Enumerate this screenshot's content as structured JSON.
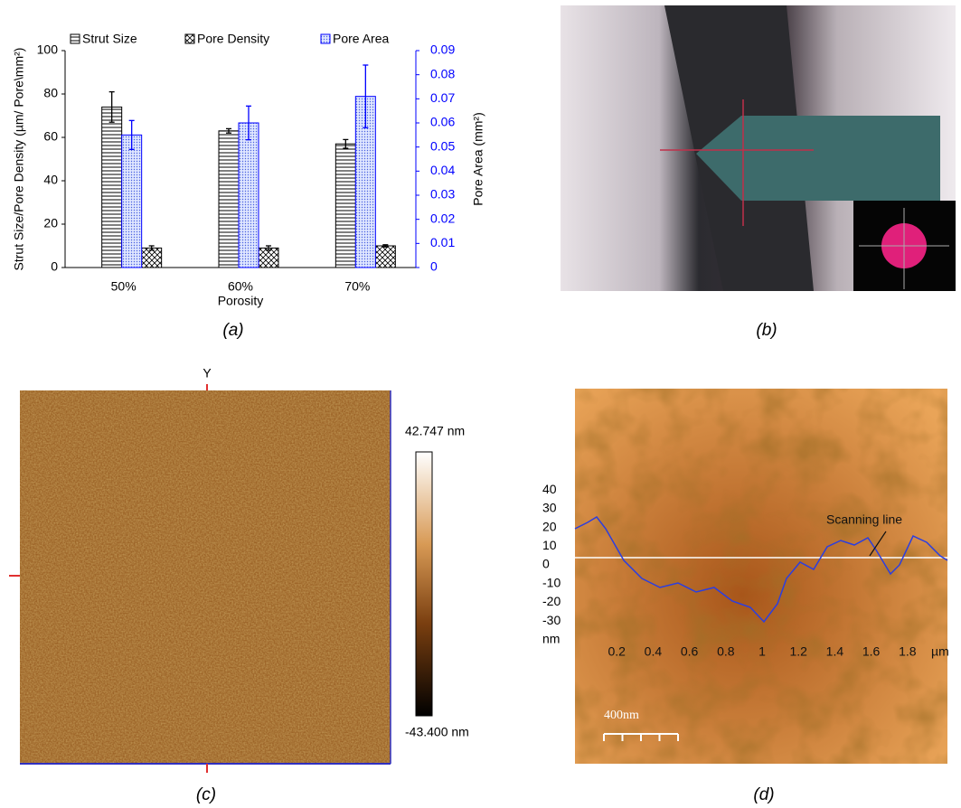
{
  "chart_data": {
    "type": "bar",
    "y_label": "Strut Size/Pore Density (µm/ Pore\\mm²)",
    "y2_label": "Pore Area (mm²)",
    "x_label": "Porosity",
    "categories": [
      "50%",
      "60%",
      "70%"
    ],
    "series": [
      {
        "name": "Strut Size",
        "color": "#000000",
        "values": [
          74,
          63,
          57
        ],
        "errors": [
          7,
          1,
          2
        ]
      },
      {
        "name": "Pore Density",
        "color": "#000000",
        "values": [
          9,
          9,
          10
        ],
        "errors": [
          1,
          1,
          0.5
        ]
      },
      {
        "name": "Pore Area",
        "color": "#0000ff",
        "axis": "y2",
        "values": [
          0.055,
          0.06,
          0.071
        ],
        "errors": [
          0.006,
          0.007,
          0.013
        ]
      }
    ],
    "ylim": [
      0,
      100
    ],
    "yticks": [
      0,
      20,
      40,
      60,
      80,
      100
    ],
    "y2lim": [
      0,
      0.09
    ],
    "y2ticks": [
      0,
      0.01,
      0.02,
      0.03,
      0.04,
      0.05,
      0.06,
      0.07,
      0.08,
      0.09
    ],
    "legend": "top"
  },
  "panel_labels": [
    "(a)",
    "(b)",
    "(c)",
    "(d)"
  ],
  "panel_c": {
    "axis_label": "Y",
    "scale_max": "42.747 nm",
    "scale_min": "-43.400 nm"
  },
  "panel_d": {
    "yticks": [
      40,
      30,
      20,
      10,
      0,
      -10,
      -20,
      -30
    ],
    "y_unit": "nm",
    "xticks": [
      0.2,
      0.4,
      0.6,
      0.8,
      1,
      1.2,
      1.4,
      1.6,
      1.8
    ],
    "x_unit": "µm",
    "annotation": "Scanning line",
    "scale_bar": "400nm"
  }
}
